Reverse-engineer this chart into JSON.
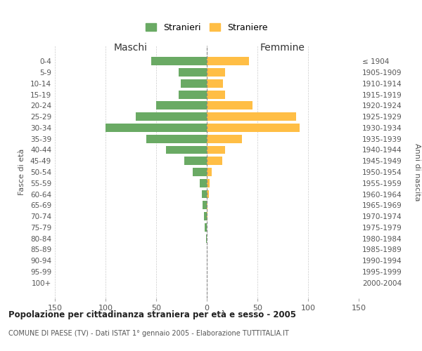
{
  "age_groups": [
    "0-4",
    "5-9",
    "10-14",
    "15-19",
    "20-24",
    "25-29",
    "30-34",
    "35-39",
    "40-44",
    "45-49",
    "50-54",
    "55-59",
    "60-64",
    "65-69",
    "70-74",
    "75-79",
    "80-84",
    "85-89",
    "90-94",
    "95-99",
    "100+"
  ],
  "birth_years": [
    "2000-2004",
    "1995-1999",
    "1990-1994",
    "1985-1989",
    "1980-1984",
    "1975-1979",
    "1970-1974",
    "1965-1969",
    "1960-1964",
    "1955-1959",
    "1950-1954",
    "1945-1949",
    "1940-1944",
    "1935-1939",
    "1930-1934",
    "1925-1929",
    "1920-1924",
    "1915-1919",
    "1910-1914",
    "1905-1909",
    "≤ 1904"
  ],
  "maschi": [
    55,
    28,
    26,
    28,
    50,
    70,
    100,
    60,
    40,
    22,
    14,
    7,
    5,
    4,
    3,
    2,
    1,
    0,
    0,
    0,
    0
  ],
  "femmine": [
    42,
    18,
    16,
    18,
    45,
    88,
    92,
    35,
    18,
    15,
    5,
    3,
    2,
    1,
    1,
    0,
    0,
    0,
    0,
    0,
    0
  ],
  "color_maschi": "#6aaa64",
  "color_femmine": "#ffbe45",
  "title_main": "Popolazione per cittadinanza straniera per età e sesso - 2005",
  "title_sub": "COMUNE DI PAESE (TV) - Dati ISTAT 1° gennaio 2005 - Elaborazione TUTTITALIA.IT",
  "xlabel_left": "Maschi",
  "xlabel_right": "Femmine",
  "ylabel_left": "Fasce di età",
  "ylabel_right": "Anni di nascita",
  "legend_maschi": "Stranieri",
  "legend_femmine": "Straniere",
  "xlim": 150,
  "background_color": "#ffffff",
  "grid_color": "#cccccc"
}
